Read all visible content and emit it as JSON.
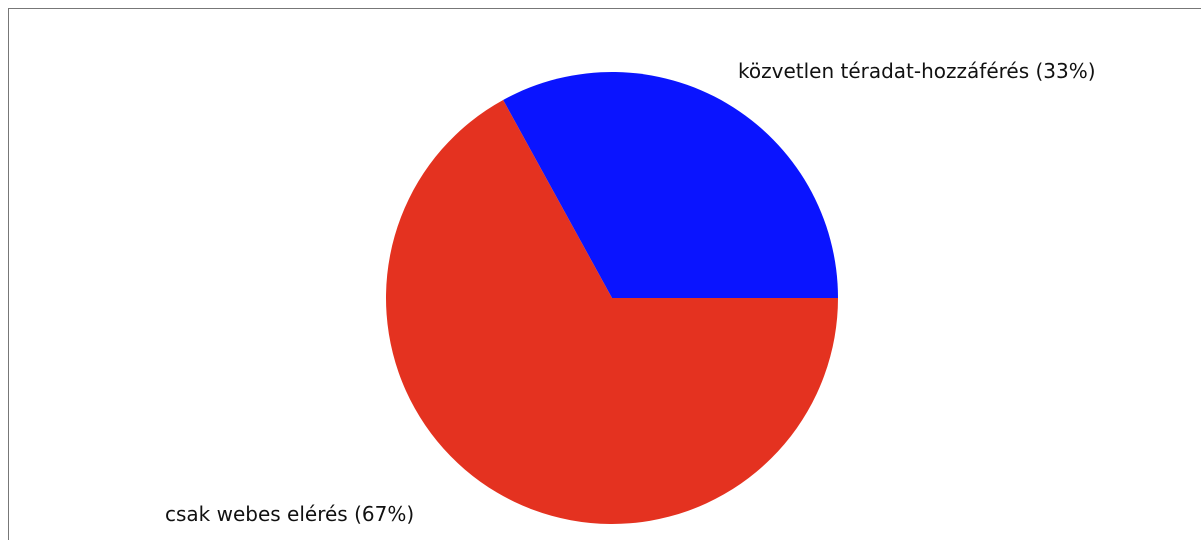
{
  "chart_data": {
    "type": "pie",
    "categories": [
      "közvetlen téradat-hozzáférés",
      "csak webes elérés"
    ],
    "values": [
      33,
      67
    ],
    "value_labels": [
      "(33%)",
      "(67%)"
    ],
    "colors": [
      "#0a14ff",
      "#e43220"
    ]
  }
}
